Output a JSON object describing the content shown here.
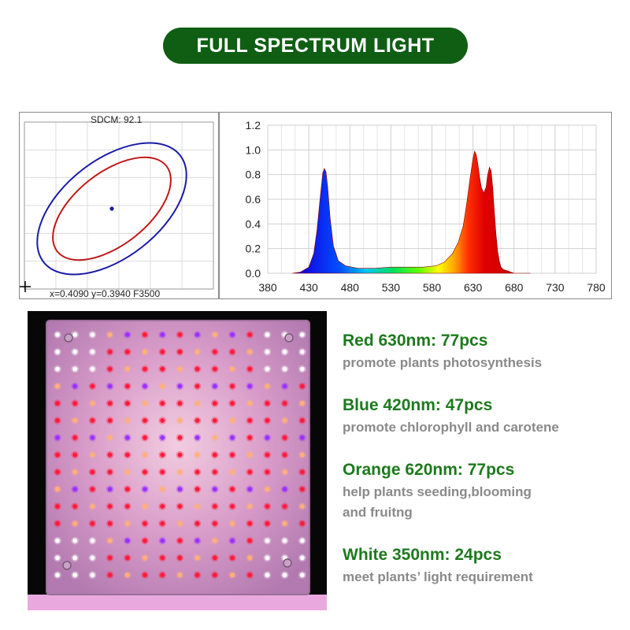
{
  "header": {
    "title": "FULL SPECTRUM LIGHT"
  },
  "colorimetry": {
    "sdcm_label": "SDCM:  92.1",
    "coords_label": "x=0.4090 y=0.3940 F3500"
  },
  "chart_data": {
    "type": "area",
    "title": "",
    "xlabel": "",
    "ylabel": "",
    "xlim": [
      380,
      780
    ],
    "ylim": [
      0,
      1.2
    ],
    "x_ticks": [
      "380",
      "430",
      "480",
      "530",
      "580",
      "630",
      "680",
      "730",
      "780"
    ],
    "y_ticks": [
      "0.0",
      "0.2",
      "0.4",
      "0.6",
      "0.8",
      "1.0",
      "1.2"
    ],
    "grid": true,
    "series": [
      {
        "x": [
          410,
          420,
          430,
          436,
          440,
          444,
          447,
          449,
          451,
          453,
          456,
          460,
          466,
          475,
          490,
          510,
          530,
          550,
          570,
          585,
          595,
          605,
          612,
          618,
          622,
          626,
          630,
          632,
          634,
          636,
          638,
          640,
          643,
          646,
          648,
          650,
          652,
          654,
          656,
          658,
          660,
          662,
          664,
          667,
          672,
          680,
          690,
          700
        ],
        "values": [
          0.0,
          0.01,
          0.05,
          0.16,
          0.35,
          0.62,
          0.81,
          0.85,
          0.82,
          0.7,
          0.45,
          0.22,
          0.1,
          0.06,
          0.04,
          0.04,
          0.05,
          0.05,
          0.05,
          0.06,
          0.09,
          0.16,
          0.25,
          0.38,
          0.55,
          0.75,
          0.93,
          0.99,
          0.96,
          0.88,
          0.78,
          0.7,
          0.65,
          0.7,
          0.8,
          0.86,
          0.83,
          0.7,
          0.5,
          0.32,
          0.18,
          0.1,
          0.05,
          0.03,
          0.02,
          0.0,
          0.0,
          0.0
        ]
      }
    ]
  },
  "specs": [
    {
      "title": "Red 630nm: 77pcs",
      "desc": "promote plants photosynthesis"
    },
    {
      "title": "Blue 420nm: 47pcs",
      "desc": "promote chlorophyll and carotene"
    },
    {
      "title": "Orange 620nm: 77pcs",
      "desc": "help plants seeding,blooming\nand fruitng"
    },
    {
      "title": "White 350nm: 24pcs",
      "desc": "meet plants’ light requirement"
    }
  ],
  "colors": {
    "title_bg": "#0f5e14",
    "spec_title": "#1d7a1d",
    "spec_desc": "#8a8a8a",
    "ellipse_outer": "#1a1aa8",
    "ellipse_inner": "#c01818"
  }
}
